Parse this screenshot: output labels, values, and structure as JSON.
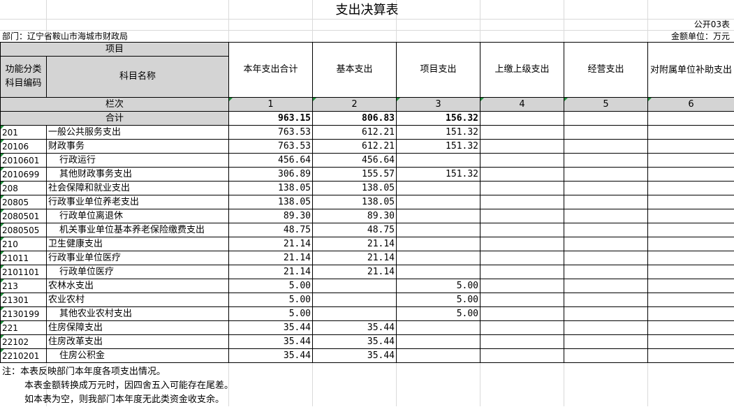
{
  "title": "支出决算表",
  "table_no": "公开03表",
  "unit": "金额单位：万元",
  "department": "部门：辽宁省鞍山市海城市财政局",
  "headers": {
    "item": "项目",
    "func_code": "功能分类科目编码",
    "subject_name": "科目名称",
    "total": "本年支出合计",
    "basic": "基本支出",
    "project": "项目支出",
    "upper": "上缴上级支出",
    "operating": "经营支出",
    "subsidy": "对附属单位补助支出",
    "lanci": "栏次",
    "col_nums": [
      "1",
      "2",
      "3",
      "4",
      "5",
      "6"
    ]
  },
  "total_row": {
    "label": "合计",
    "total": "963.15",
    "basic": "806.83",
    "project": "156.32",
    "upper": "",
    "operating": "",
    "subsidy": ""
  },
  "rows": [
    {
      "code": "201",
      "name": "一般公共服务支出",
      "total": "763.53",
      "basic": "612.21",
      "project": "151.32",
      "upper": "",
      "operating": "",
      "subsidy": ""
    },
    {
      "code": "20106",
      "name": "财政事务",
      "total": "763.53",
      "basic": "612.21",
      "project": "151.32",
      "upper": "",
      "operating": "",
      "subsidy": ""
    },
    {
      "code": "2010601",
      "name": "行政运行",
      "total": "456.64",
      "basic": "456.64",
      "project": "",
      "upper": "",
      "operating": "",
      "subsidy": ""
    },
    {
      "code": "2010699",
      "name": "其他财政事务支出",
      "total": "306.89",
      "basic": "155.57",
      "project": "151.32",
      "upper": "",
      "operating": "",
      "subsidy": ""
    },
    {
      "code": "208",
      "name": "社会保障和就业支出",
      "total": "138.05",
      "basic": "138.05",
      "project": "",
      "upper": "",
      "operating": "",
      "subsidy": ""
    },
    {
      "code": "20805",
      "name": "行政事业单位养老支出",
      "total": "138.05",
      "basic": "138.05",
      "project": "",
      "upper": "",
      "operating": "",
      "subsidy": ""
    },
    {
      "code": "2080501",
      "name": "行政单位离退休",
      "total": "89.30",
      "basic": "89.30",
      "project": "",
      "upper": "",
      "operating": "",
      "subsidy": ""
    },
    {
      "code": "2080505",
      "name": "机关事业单位基本养老保险缴费支出",
      "total": "48.75",
      "basic": "48.75",
      "project": "",
      "upper": "",
      "operating": "",
      "subsidy": ""
    },
    {
      "code": "210",
      "name": "卫生健康支出",
      "total": "21.14",
      "basic": "21.14",
      "project": "",
      "upper": "",
      "operating": "",
      "subsidy": ""
    },
    {
      "code": "21011",
      "name": "行政事业单位医疗",
      "total": "21.14",
      "basic": "21.14",
      "project": "",
      "upper": "",
      "operating": "",
      "subsidy": ""
    },
    {
      "code": "2101101",
      "name": "行政单位医疗",
      "total": "21.14",
      "basic": "21.14",
      "project": "",
      "upper": "",
      "operating": "",
      "subsidy": ""
    },
    {
      "code": "213",
      "name": "农林水支出",
      "total": "5.00",
      "basic": "",
      "project": "5.00",
      "upper": "",
      "operating": "",
      "subsidy": ""
    },
    {
      "code": "21301",
      "name": "农业农村",
      "total": "5.00",
      "basic": "",
      "project": "5.00",
      "upper": "",
      "operating": "",
      "subsidy": ""
    },
    {
      "code": "2130199",
      "name": "其他农业农村支出",
      "total": "5.00",
      "basic": "",
      "project": "5.00",
      "upper": "",
      "operating": "",
      "subsidy": ""
    },
    {
      "code": "221",
      "name": "住房保障支出",
      "total": "35.44",
      "basic": "35.44",
      "project": "",
      "upper": "",
      "operating": "",
      "subsidy": ""
    },
    {
      "code": "22102",
      "name": "住房改革支出",
      "total": "35.44",
      "basic": "35.44",
      "project": "",
      "upper": "",
      "operating": "",
      "subsidy": ""
    },
    {
      "code": "2210201",
      "name": "住房公积金",
      "total": "35.44",
      "basic": "35.44",
      "project": "",
      "upper": "",
      "operating": "",
      "subsidy": ""
    }
  ],
  "notes": [
    "注：本表反映部门本年度各项支出情况。",
    "本表金额转换成万元时，因四舍五入可能存在尾差。",
    "如本表为空，则我部门本年度无此类资金收支余。"
  ]
}
